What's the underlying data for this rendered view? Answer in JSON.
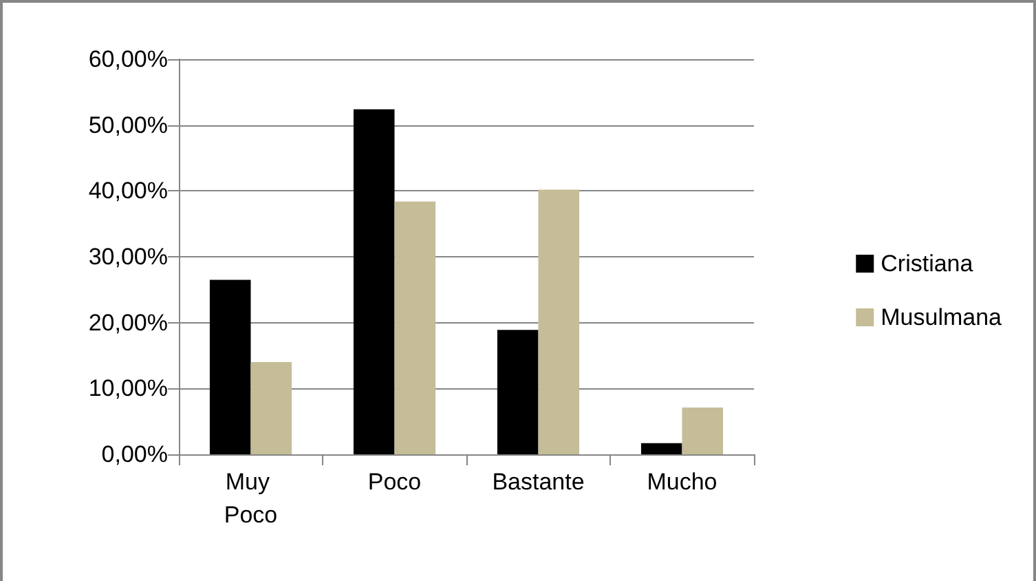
{
  "chart_data": {
    "type": "bar",
    "categories": [
      "Muy Poco",
      "Poco",
      "Bastante",
      "Mucho"
    ],
    "series": [
      {
        "name": "Cristiana",
        "color": "#000000",
        "values": [
          26.5,
          52.4,
          18.9,
          1.7
        ]
      },
      {
        "name": "Musulmana",
        "color": "#c4bd97",
        "values": [
          14.0,
          38.4,
          40.2,
          7.1
        ]
      }
    ],
    "ylim": [
      0,
      60
    ],
    "yticks": [
      {
        "value": 0,
        "label": "0,00%"
      },
      {
        "value": 10,
        "label": "10,00%"
      },
      {
        "value": 20,
        "label": "20,00%"
      },
      {
        "value": 30,
        "label": "30,00%"
      },
      {
        "value": 40,
        "label": "40,00%"
      },
      {
        "value": 50,
        "label": "50,00%"
      },
      {
        "value": 60,
        "label": "60,00%"
      }
    ],
    "grid": "y",
    "legend": "right"
  }
}
